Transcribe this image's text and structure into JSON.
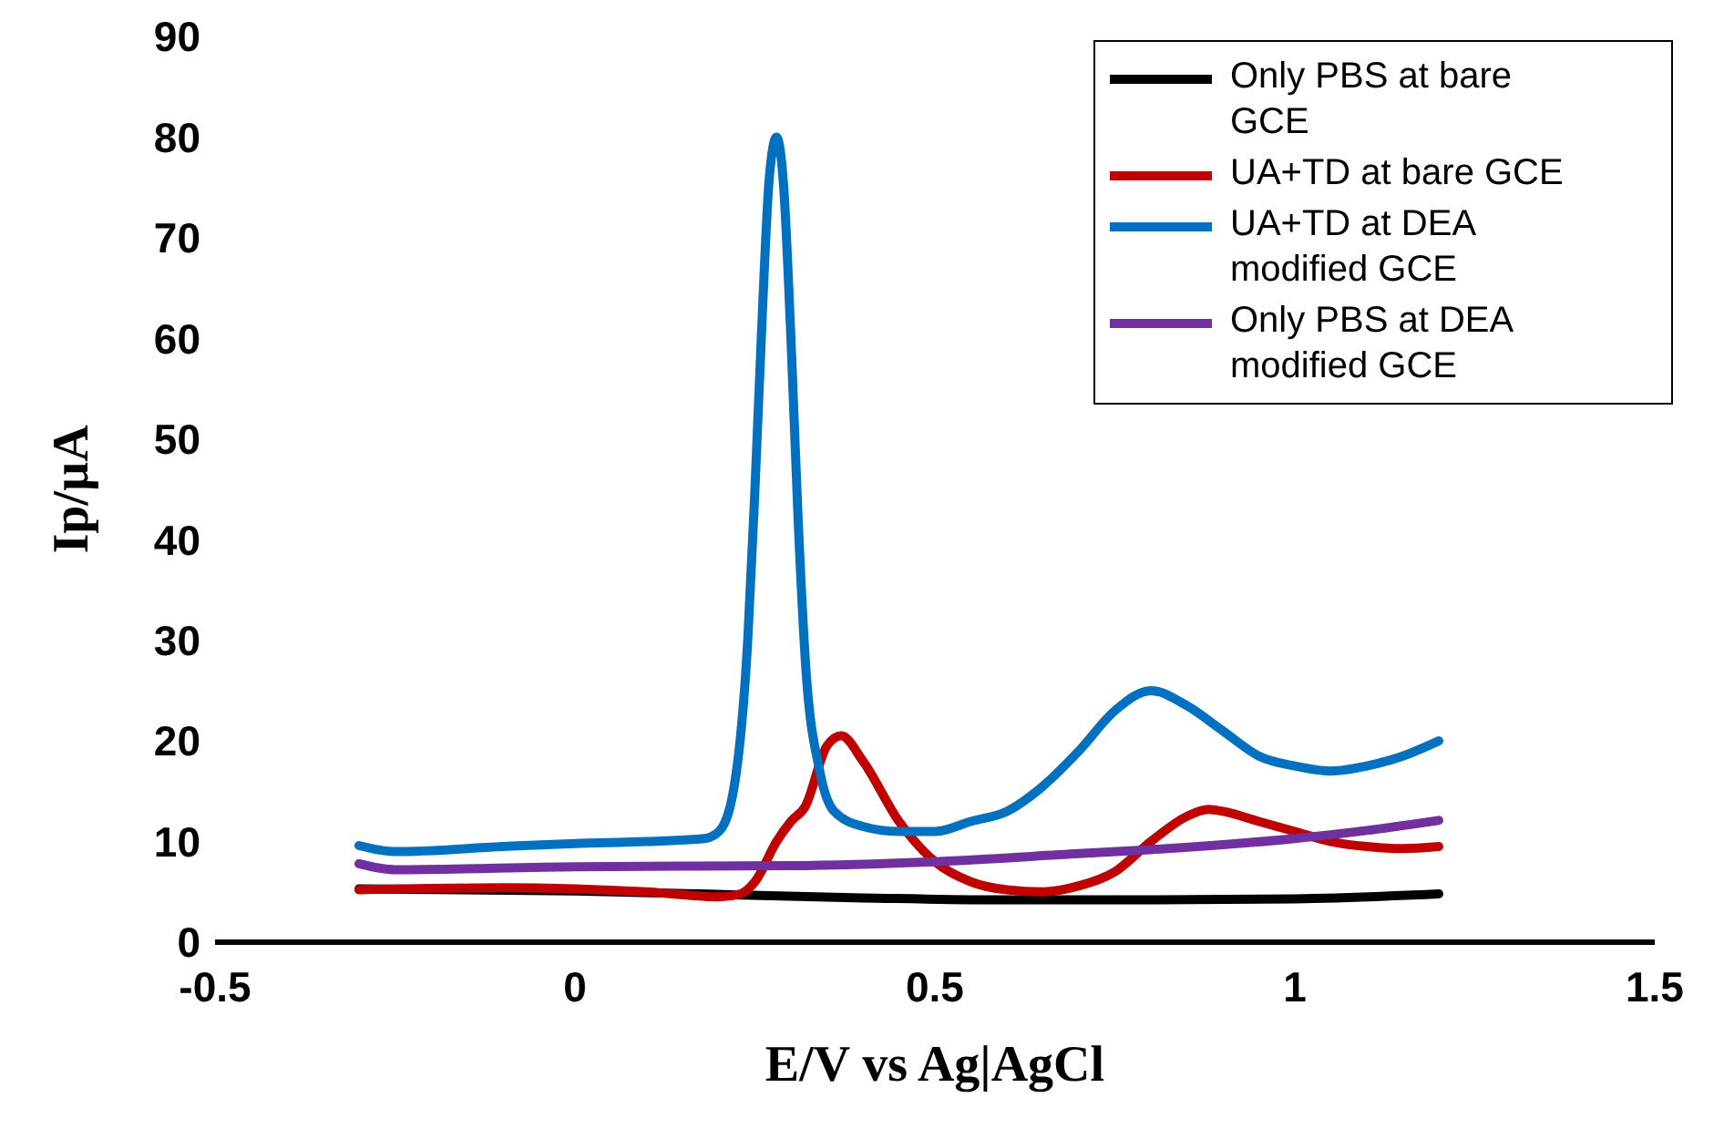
{
  "chart_data": {
    "type": "line",
    "xlabel": "E/V vs Ag|AgCl",
    "ylabel": "Ip/µA",
    "xlim": [
      -0.5,
      1.5
    ],
    "xticks": [
      -0.5,
      0,
      0.5,
      1,
      1.5
    ],
    "ylim": [
      0,
      90
    ],
    "yticks": [
      0,
      10,
      20,
      30,
      40,
      50,
      60,
      70,
      80,
      90
    ],
    "grid": false,
    "legend": "top right",
    "marker": "none",
    "line_style": "solid",
    "series": [
      {
        "name": "Only PBS at bare GCE",
        "color": "#000000",
        "x": [
          -0.3,
          0,
          0.4,
          0.6,
          0.8,
          1.0,
          1.2
        ],
        "values": [
          5.3,
          5.1,
          4.4,
          4.2,
          4.2,
          4.3,
          4.8
        ]
      },
      {
        "name": "UA+TD at bare GCE",
        "color": "#c00000",
        "x": [
          -0.3,
          -0.1,
          0,
          0.1,
          0.2,
          0.23,
          0.25,
          0.28,
          0.3,
          0.32,
          0.35,
          0.37,
          0.4,
          0.45,
          0.5,
          0.55,
          0.6,
          0.65,
          0.7,
          0.75,
          0.8,
          0.85,
          0.88,
          0.9,
          0.95,
          1.0,
          1.05,
          1.1,
          1.15,
          1.2
        ],
        "values": [
          5.2,
          5.4,
          5.3,
          5.0,
          4.5,
          4.8,
          6,
          10,
          12,
          13.5,
          19.5,
          20.5,
          18,
          12,
          8,
          6,
          5.2,
          5,
          5.6,
          7,
          10,
          12.5,
          13.2,
          13,
          12,
          11,
          10,
          9.5,
          9.3,
          9.5
        ]
      },
      {
        "name": "UA+TD at DEA modified GCE",
        "color": "#0070c0",
        "x": [
          -0.3,
          -0.25,
          -0.1,
          0,
          0.1,
          0.18,
          0.2,
          0.22,
          0.24,
          0.25,
          0.26,
          0.27,
          0.28,
          0.29,
          0.3,
          0.31,
          0.32,
          0.34,
          0.36,
          0.4,
          0.45,
          0.5,
          0.55,
          0.6,
          0.65,
          0.7,
          0.75,
          0.8,
          0.85,
          0.9,
          0.95,
          1.0,
          1.05,
          1.1,
          1.15,
          1.2
        ],
        "values": [
          9.6,
          9.0,
          9.5,
          9.8,
          10,
          10.3,
          11,
          15,
          30,
          45,
          62,
          76,
          80,
          75,
          60,
          42,
          28,
          17,
          13,
          11.5,
          11,
          11,
          12,
          13,
          15.5,
          19,
          23,
          25,
          23.5,
          21,
          18.5,
          17.5,
          17,
          17.5,
          18.5,
          20
        ]
      },
      {
        "name": "Only PBS at DEA modified GCE",
        "color": "#7030a0",
        "x": [
          -0.3,
          -0.25,
          0,
          0.3,
          0.5,
          0.7,
          0.8,
          1.0,
          1.1,
          1.2
        ],
        "values": [
          7.8,
          7.2,
          7.5,
          7.6,
          8,
          8.8,
          9.2,
          10.3,
          11.1,
          12.1
        ]
      }
    ]
  }
}
